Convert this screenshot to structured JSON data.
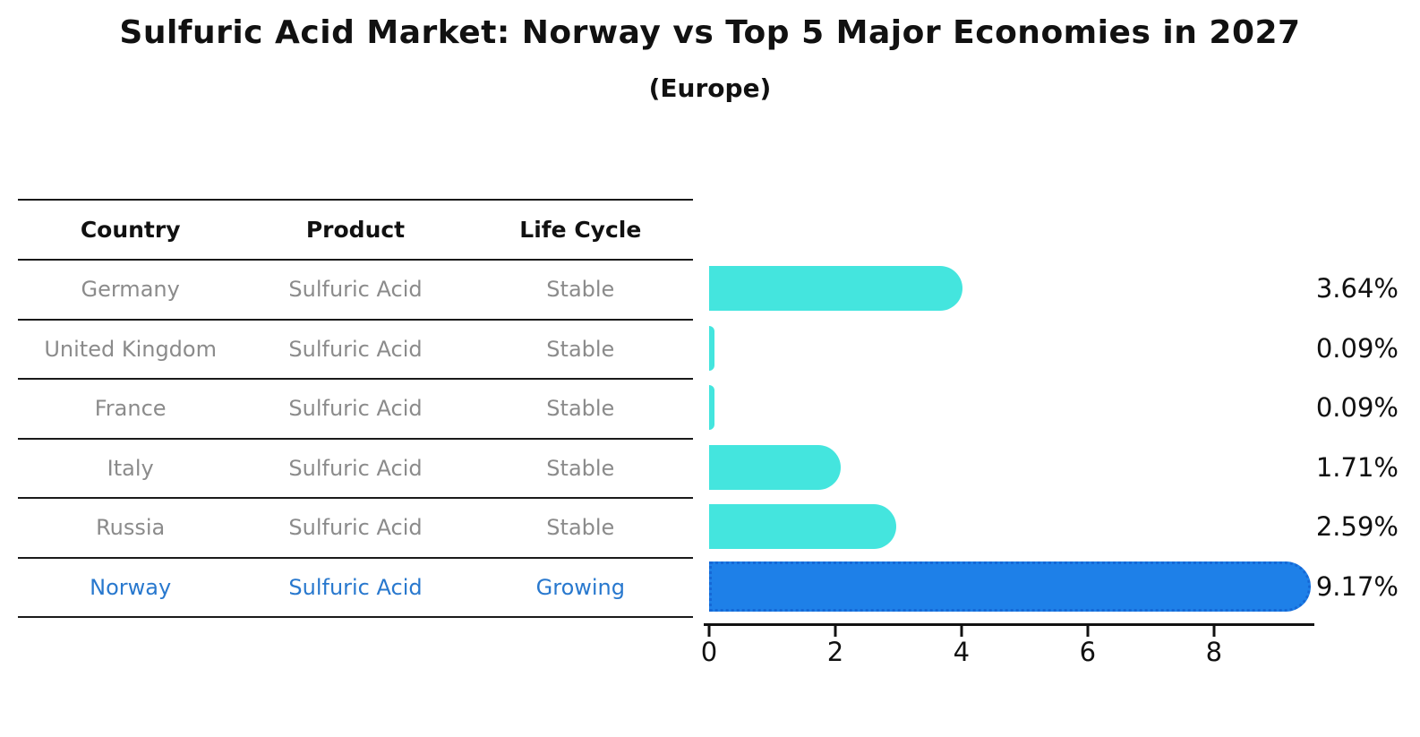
{
  "title": "Sulfuric Acid Market: Norway vs Top 5 Major Economies in 2027",
  "subtitle": "(Europe)",
  "table": {
    "headers": {
      "country": "Country",
      "product": "Product",
      "life_cycle": "Life Cycle"
    },
    "rows": [
      {
        "country": "Germany",
        "product": "Sulfuric Acid",
        "life_cycle": "Stable",
        "highlight": false
      },
      {
        "country": "United Kingdom",
        "product": "Sulfuric Acid",
        "life_cycle": "Stable",
        "highlight": false
      },
      {
        "country": "France",
        "product": "Sulfuric Acid",
        "life_cycle": "Stable",
        "highlight": false
      },
      {
        "country": "Italy",
        "product": "Sulfuric Acid",
        "life_cycle": "Stable",
        "highlight": false
      },
      {
        "country": "Russia",
        "product": "Sulfuric Acid",
        "life_cycle": "Stable",
        "highlight": false
      },
      {
        "country": "Norway",
        "product": "Sulfuric Acid",
        "life_cycle": "Growing",
        "highlight": true
      }
    ]
  },
  "chart_data": {
    "type": "bar",
    "orientation": "horizontal",
    "title": "Sulfuric Acid Market: Norway vs Top 5 Major Economies in 2027",
    "subtitle": "(Europe)",
    "categories": [
      "Germany",
      "United Kingdom",
      "France",
      "Italy",
      "Russia",
      "Norway"
    ],
    "values": [
      3.64,
      0.09,
      0.09,
      1.71,
      2.59,
      9.17
    ],
    "value_labels": [
      "3.64%",
      "0.09%",
      "0.09%",
      "1.71%",
      "2.59%",
      "9.17%"
    ],
    "x_ticks": [
      0,
      2,
      4,
      6,
      8
    ],
    "xlim": [
      0,
      9.62
    ],
    "grid": false,
    "legend": false,
    "highlight_index": 5,
    "bar_color": "#44E5DE",
    "highlight_bar_color": "#1E80E8"
  },
  "colors": {
    "background": "#FFFFFF",
    "bar_cyan": "#44E5DE",
    "bar_blue": "#1E80E8",
    "bar_blue_border": "#1568D6",
    "highlight_text": "#2878CE",
    "muted_text": "#8B8B8B",
    "heading_text": "#111111",
    "table_line": "#1A1A1A",
    "axis_line": "#111111"
  }
}
